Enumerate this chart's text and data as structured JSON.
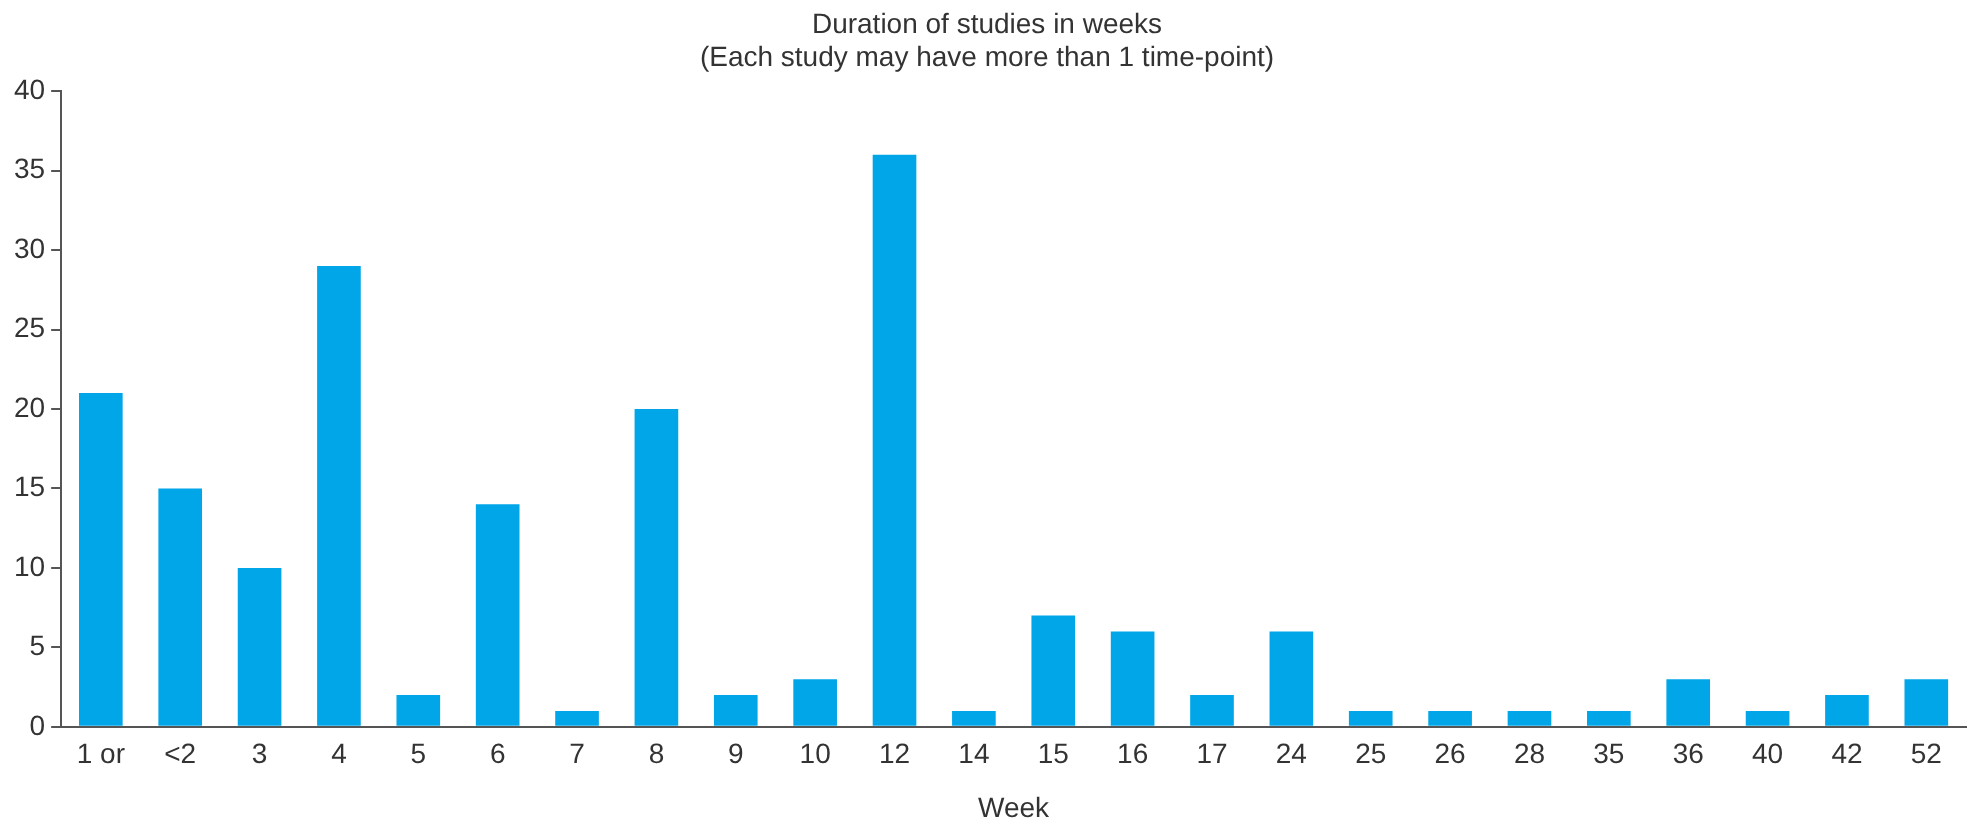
{
  "chart_data": {
    "type": "bar",
    "title": [
      "Duration of studies in weeks",
      "(Each study may have more than 1 time-point)"
    ],
    "xlabel": "Week",
    "categories": [
      "1 or",
      "<2",
      "3",
      "4",
      "5",
      "6",
      "7",
      "8",
      "9",
      "10",
      "12",
      "14",
      "15",
      "16",
      "17",
      "24",
      "25",
      "26",
      "28",
      "35",
      "36",
      "40",
      "42",
      "52"
    ],
    "values": [
      21,
      15,
      10,
      29,
      2,
      14,
      1,
      20,
      2,
      3,
      36,
      1,
      7,
      6,
      2,
      6,
      1,
      1,
      1,
      1,
      3,
      1,
      2,
      3
    ],
    "color": "#00a6e8",
    "ylim": [
      0,
      40
    ],
    "yticks": [
      0,
      5,
      10,
      15,
      20,
      25,
      30,
      35,
      40
    ],
    "grid": false
  }
}
